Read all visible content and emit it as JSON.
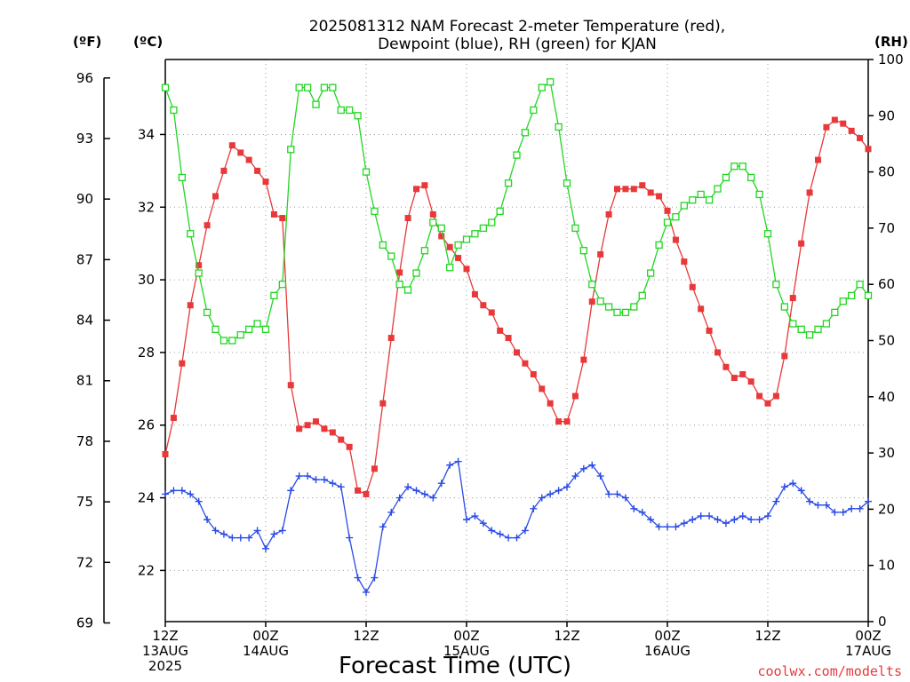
{
  "chart_data": {
    "type": "line",
    "title_line1": "2025081312 NAM Forecast 2-meter Temperature (red),",
    "title_line2": "Dewpoint (blue), RH (green) for KJAN",
    "xlabel": "Forecast Time (UTC)",
    "credit": "coolwx.com/modelts",
    "units": {
      "f": "(ºF)",
      "c": "(ºC)",
      "rh": "(RH)"
    },
    "hours_range": [
      0,
      84
    ],
    "c_range": [
      20.592,
      36.064
    ],
    "f_range": [
      69,
      96
    ],
    "rh_range": [
      0,
      100
    ],
    "f_ticks": [
      "69",
      "72",
      "75",
      "78",
      "81",
      "84",
      "87",
      "90",
      "93",
      "96"
    ],
    "c_ticks": [
      "22",
      "24",
      "26",
      "28",
      "30",
      "32",
      "34"
    ],
    "rh_ticks": [
      "0",
      "10",
      "20",
      "30",
      "40",
      "50",
      "60",
      "70",
      "80",
      "90",
      "100"
    ],
    "x_ticks": [
      {
        "hour": 0,
        "l1": "12Z",
        "l2": "13AUG",
        "l3": "2025"
      },
      {
        "hour": 12,
        "l1": "00Z",
        "l2": "14AUG",
        "l3": ""
      },
      {
        "hour": 24,
        "l1": "12Z",
        "l2": "",
        "l3": ""
      },
      {
        "hour": 36,
        "l1": "00Z",
        "l2": "15AUG",
        "l3": ""
      },
      {
        "hour": 48,
        "l1": "12Z",
        "l2": "",
        "l3": ""
      },
      {
        "hour": 60,
        "l1": "00Z",
        "l2": "16AUG",
        "l3": ""
      },
      {
        "hour": 72,
        "l1": "12Z",
        "l2": "",
        "l3": ""
      },
      {
        "hour": 84,
        "l1": "00Z",
        "l2": "17AUG",
        "l3": ""
      }
    ],
    "hours": [
      0,
      1,
      2,
      3,
      4,
      5,
      6,
      7,
      8,
      9,
      10,
      11,
      12,
      13,
      14,
      15,
      16,
      17,
      18,
      19,
      20,
      21,
      22,
      23,
      24,
      25,
      26,
      27,
      28,
      29,
      30,
      31,
      32,
      33,
      34,
      35,
      36,
      37,
      38,
      39,
      40,
      41,
      42,
      43,
      44,
      45,
      46,
      47,
      48,
      49,
      50,
      51,
      52,
      53,
      54,
      55,
      56,
      57,
      58,
      59,
      60,
      61,
      62,
      63,
      64,
      65,
      66,
      67,
      68,
      69,
      70,
      71,
      72,
      73,
      74,
      75,
      76,
      77,
      78,
      79,
      80,
      81,
      82,
      83,
      84
    ],
    "series": [
      {
        "name": "Temperature",
        "color": "#e8383a",
        "marker": "filled-square",
        "values": [
          25.2,
          26.2,
          27.7,
          29.3,
          30.4,
          31.5,
          32.3,
          33.0,
          33.7,
          33.5,
          33.3,
          33.0,
          32.7,
          31.8,
          31.7,
          27.1,
          25.9,
          26.0,
          26.1,
          25.9,
          25.8,
          25.6,
          25.4,
          24.2,
          24.1,
          24.8,
          26.6,
          28.4,
          30.2,
          31.7,
          32.5,
          32.6,
          31.8,
          31.2,
          30.9,
          30.6,
          30.3,
          29.6,
          29.3,
          29.1,
          28.6,
          28.4,
          28.0,
          27.7,
          27.4,
          27.0,
          26.6,
          26.1,
          26.1,
          26.8,
          27.8,
          29.4,
          30.7,
          31.8,
          32.5,
          32.5,
          32.5,
          32.6,
          32.4,
          32.3,
          31.9,
          31.1,
          30.5,
          29.8,
          29.2,
          28.6,
          28.0,
          27.6,
          27.3,
          27.4,
          27.2,
          26.8,
          26.6,
          26.8,
          27.9,
          29.5,
          31.0,
          32.4,
          33.3,
          34.2,
          34.4,
          34.3,
          34.1,
          33.9,
          33.6
        ]
      },
      {
        "name": "Dewpoint",
        "color": "#2a4be6",
        "marker": "plus",
        "values": [
          24.1,
          24.2,
          24.2,
          24.1,
          23.9,
          23.4,
          23.1,
          23.0,
          22.9,
          22.9,
          22.9,
          23.1,
          22.6,
          23.0,
          23.1,
          24.2,
          24.6,
          24.6,
          24.5,
          24.5,
          24.4,
          24.3,
          22.9,
          21.8,
          21.4,
          21.8,
          23.2,
          23.6,
          24.0,
          24.3,
          24.2,
          24.1,
          24.0,
          24.4,
          24.9,
          25.0,
          23.4,
          23.5,
          23.3,
          23.1,
          23.0,
          22.9,
          22.9,
          23.1,
          23.7,
          24.0,
          24.1,
          24.2,
          24.3,
          24.6,
          24.8,
          24.9,
          24.6,
          24.1,
          24.1,
          24.0,
          23.7,
          23.6,
          23.4,
          23.2,
          23.2,
          23.2,
          23.3,
          23.4,
          23.5,
          23.5,
          23.4,
          23.3,
          23.4,
          23.5,
          23.4,
          23.4,
          23.5,
          23.9,
          24.3,
          24.4,
          24.2,
          23.9,
          23.8,
          23.8,
          23.6,
          23.6,
          23.7,
          23.7,
          23.9
        ]
      },
      {
        "name": "RH",
        "color": "#22d622",
        "marker": "open-square",
        "values": [
          95,
          91,
          79,
          69,
          62,
          55,
          52,
          50,
          50,
          51,
          52,
          53,
          52,
          58,
          60,
          84,
          95,
          95,
          92,
          95,
          95,
          91,
          91,
          90,
          80,
          73,
          67,
          65,
          60,
          59,
          62,
          66,
          71,
          70,
          63,
          67,
          68,
          69,
          70,
          71,
          73,
          78,
          83,
          87,
          91,
          95,
          96,
          88,
          78,
          70,
          66,
          60,
          57,
          56,
          55,
          55,
          56,
          58,
          62,
          67,
          71,
          72,
          74,
          75,
          76,
          75,
          77,
          79,
          81,
          81,
          79,
          76,
          69,
          60,
          56,
          53,
          52,
          51,
          52,
          53,
          55,
          57,
          58,
          60,
          58
        ]
      }
    ]
  }
}
